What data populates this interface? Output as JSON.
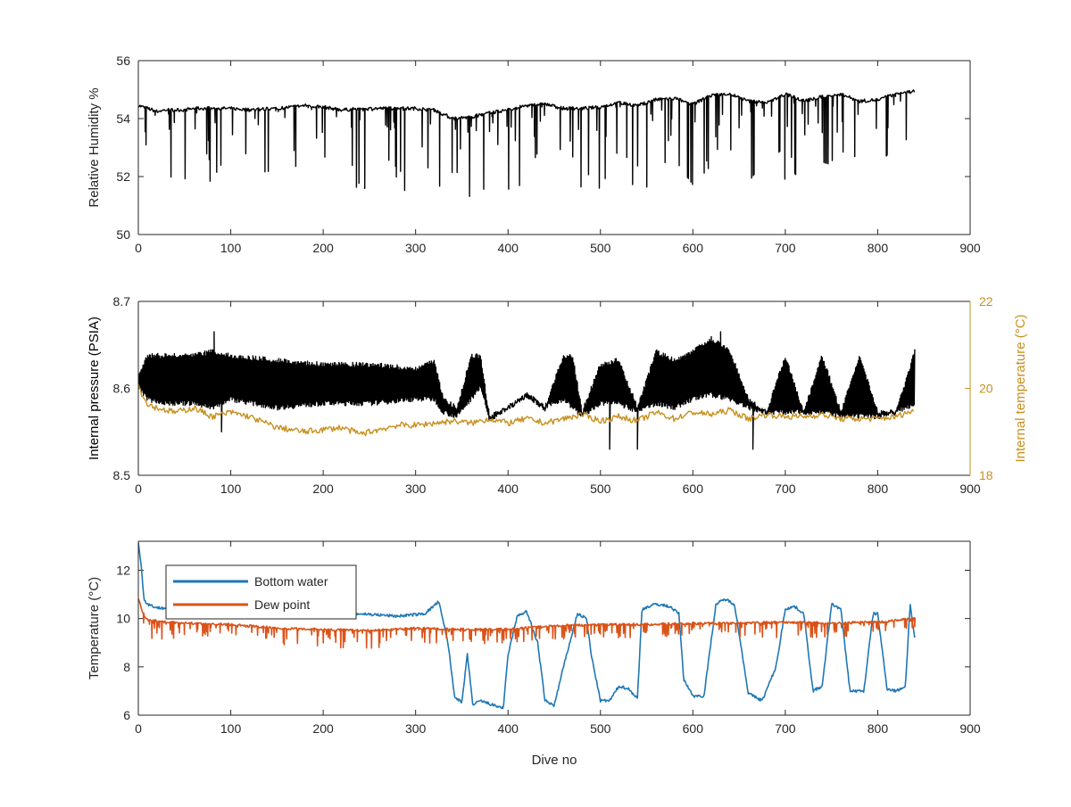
{
  "chart_data": [
    {
      "type": "line",
      "xlabel": "",
      "ylabel": "Relative Humidity %",
      "xlim": [
        0,
        900
      ],
      "ylim": [
        50,
        56
      ],
      "xticks": [
        0,
        100,
        200,
        300,
        400,
        500,
        600,
        700,
        800,
        900
      ],
      "yticks": [
        50,
        52,
        54,
        56
      ],
      "grid": false,
      "series": [
        {
          "color": "#000000",
          "x": [
            0,
            10,
            20,
            30,
            40,
            50,
            60,
            80,
            100,
            120,
            150,
            180,
            200,
            220,
            250,
            280,
            300,
            320,
            340,
            360,
            380,
            400,
            420,
            440,
            460,
            480,
            500,
            520,
            540,
            560,
            580,
            600,
            620,
            640,
            660,
            680,
            700,
            720,
            740,
            760,
            780,
            800,
            820,
            840
          ],
          "baseline": [
            54.45,
            54.35,
            54.25,
            54.3,
            54.3,
            54.3,
            54.35,
            54.35,
            54.35,
            54.3,
            54.35,
            54.45,
            54.4,
            54.3,
            54.35,
            54.35,
            54.35,
            54.3,
            54.0,
            54.05,
            54.2,
            54.3,
            54.45,
            54.5,
            54.35,
            54.35,
            54.4,
            54.55,
            54.45,
            54.65,
            54.7,
            54.5,
            54.8,
            54.85,
            54.6,
            54.55,
            54.85,
            54.6,
            54.75,
            54.85,
            54.6,
            54.65,
            54.85,
            54.95
          ],
          "dip_min": [
            52.6,
            51.4,
            51.3,
            51.3,
            51.6,
            51.3,
            52.1,
            51.8,
            51.3,
            52.5,
            51.9,
            51.5,
            51.2,
            52.0,
            51.3,
            51.6,
            51.4,
            51.3,
            51.5,
            51.3,
            51.1,
            51.2,
            52.0,
            53.4,
            52.3,
            51.6,
            51.6,
            52.6,
            51.4,
            51.7,
            52.6,
            51.7,
            52.4,
            51.9,
            51.8,
            52.7,
            51.8,
            52.2,
            52.5,
            52.3,
            52.2,
            52.6,
            51.6,
            52.0
          ]
        }
      ]
    },
    {
      "type": "line",
      "xlabel": "",
      "ylabel": "Internal pressure (PSIA)",
      "y2label": "Internal temperature (°C)",
      "xlim": [
        0,
        900
      ],
      "ylim": [
        8.5,
        8.7
      ],
      "y2lim": [
        18,
        22
      ],
      "xticks": [
        0,
        100,
        200,
        300,
        400,
        500,
        600,
        700,
        800,
        900
      ],
      "yticks": [
        8.5,
        8.6,
        8.7
      ],
      "y2ticks": [
        18,
        20,
        22
      ],
      "grid": false,
      "series": [
        {
          "axis": "left",
          "color": "#000000",
          "x": [
            0,
            10,
            30,
            60,
            80,
            100,
            150,
            200,
            250,
            300,
            320,
            330,
            345,
            360,
            370,
            380,
            400,
            420,
            440,
            460,
            470,
            480,
            500,
            520,
            540,
            560,
            580,
            600,
            620,
            640,
            660,
            680,
            700,
            720,
            740,
            760,
            780,
            800,
            820,
            840
          ],
          "low": [
            8.6,
            8.585,
            8.58,
            8.58,
            8.575,
            8.585,
            8.575,
            8.58,
            8.58,
            8.585,
            8.585,
            8.57,
            8.565,
            8.585,
            8.6,
            8.56,
            8.575,
            8.59,
            8.575,
            8.585,
            8.575,
            8.565,
            8.58,
            8.58,
            8.57,
            8.58,
            8.575,
            8.585,
            8.59,
            8.585,
            8.575,
            8.57,
            8.57,
            8.57,
            8.57,
            8.565,
            8.565,
            8.565,
            8.57,
            8.58
          ],
          "high": [
            8.62,
            8.64,
            8.64,
            8.64,
            8.645,
            8.64,
            8.635,
            8.63,
            8.63,
            8.625,
            8.635,
            8.59,
            8.58,
            8.64,
            8.64,
            8.57,
            8.58,
            8.595,
            8.58,
            8.64,
            8.64,
            8.575,
            8.63,
            8.635,
            8.58,
            8.645,
            8.635,
            8.645,
            8.66,
            8.645,
            8.59,
            8.575,
            8.64,
            8.575,
            8.64,
            8.575,
            8.64,
            8.575,
            8.575,
            8.645
          ]
        },
        {
          "axis": "right",
          "color": "#C8901E",
          "x": [
            0,
            5,
            10,
            20,
            40,
            60,
            80,
            100,
            120,
            150,
            180,
            200,
            220,
            240,
            260,
            280,
            300,
            320,
            340,
            360,
            380,
            400,
            420,
            440,
            460,
            480,
            500,
            520,
            540,
            560,
            580,
            600,
            620,
            640,
            660,
            680,
            700,
            720,
            740,
            760,
            780,
            800,
            820,
            840
          ],
          "values": [
            20.1,
            19.8,
            19.65,
            19.55,
            19.45,
            19.55,
            19.35,
            19.45,
            19.35,
            19.1,
            19.0,
            19.05,
            19.1,
            18.95,
            19.05,
            19.15,
            19.15,
            19.2,
            19.25,
            19.2,
            19.3,
            19.2,
            19.3,
            19.2,
            19.3,
            19.4,
            19.25,
            19.35,
            19.25,
            19.45,
            19.3,
            19.45,
            19.4,
            19.5,
            19.3,
            19.4,
            19.35,
            19.35,
            19.4,
            19.3,
            19.3,
            19.3,
            19.35,
            19.5
          ]
        }
      ]
    },
    {
      "type": "line",
      "xlabel": "Dive no",
      "ylabel": "Temperature (°C)",
      "xlim": [
        0,
        900
      ],
      "ylim": [
        6,
        13.2
      ],
      "xticks": [
        0,
        100,
        200,
        300,
        400,
        500,
        600,
        700,
        800,
        900
      ],
      "yticks": [
        6,
        8,
        10,
        12
      ],
      "grid": false,
      "legend": "top-left",
      "series": [
        {
          "name": "Bottom water",
          "color": "#1F77B4",
          "x": [
            0,
            3,
            6,
            10,
            20,
            40,
            80,
            120,
            160,
            200,
            240,
            280,
            310,
            325,
            335,
            342,
            350,
            356,
            362,
            370,
            385,
            395,
            400,
            410,
            420,
            432,
            440,
            450,
            460,
            475,
            485,
            490,
            500,
            510,
            520,
            530,
            540,
            545,
            560,
            575,
            585,
            590,
            600,
            612,
            625,
            635,
            645,
            660,
            675,
            690,
            700,
            710,
            720,
            730,
            740,
            750,
            760,
            770,
            785,
            795,
            800,
            810,
            820,
            830,
            835,
            840
          ],
          "values": [
            13.1,
            12.3,
            10.8,
            10.6,
            10.45,
            10.4,
            10.35,
            10.3,
            10.2,
            10.2,
            10.2,
            10.1,
            10.2,
            10.7,
            9.0,
            6.8,
            6.5,
            8.5,
            6.4,
            6.6,
            6.4,
            6.3,
            8.5,
            10.1,
            10.3,
            9.0,
            6.6,
            6.4,
            8.0,
            10.2,
            10.0,
            8.5,
            6.6,
            6.6,
            7.2,
            7.1,
            6.7,
            10.4,
            10.6,
            10.5,
            10.2,
            7.5,
            6.8,
            6.8,
            10.6,
            10.8,
            10.6,
            6.9,
            6.6,
            8.0,
            10.4,
            10.5,
            10.2,
            7.0,
            7.2,
            10.6,
            10.4,
            7.0,
            7.0,
            10.2,
            10.2,
            7.1,
            7.0,
            7.2,
            10.6,
            9.2
          ]
        },
        {
          "name": "Dew point",
          "color": "#D95319",
          "x": [
            0,
            5,
            10,
            30,
            60,
            100,
            150,
            200,
            250,
            300,
            350,
            400,
            450,
            500,
            550,
            600,
            650,
            700,
            750,
            800,
            840
          ],
          "values": [
            10.8,
            10.2,
            9.95,
            9.85,
            9.8,
            9.75,
            9.6,
            9.55,
            9.5,
            9.6,
            9.55,
            9.55,
            9.7,
            9.75,
            9.75,
            9.8,
            9.8,
            9.85,
            9.8,
            9.85,
            10.0
          ],
          "dip_min": [
            10.5,
            9.8,
            9.1,
            9.1,
            9.3,
            9.2,
            8.9,
            8.8,
            8.7,
            9.0,
            8.9,
            9.0,
            9.1,
            9.2,
            9.2,
            9.3,
            9.2,
            9.2,
            9.2,
            9.3,
            9.6
          ]
        }
      ]
    }
  ]
}
